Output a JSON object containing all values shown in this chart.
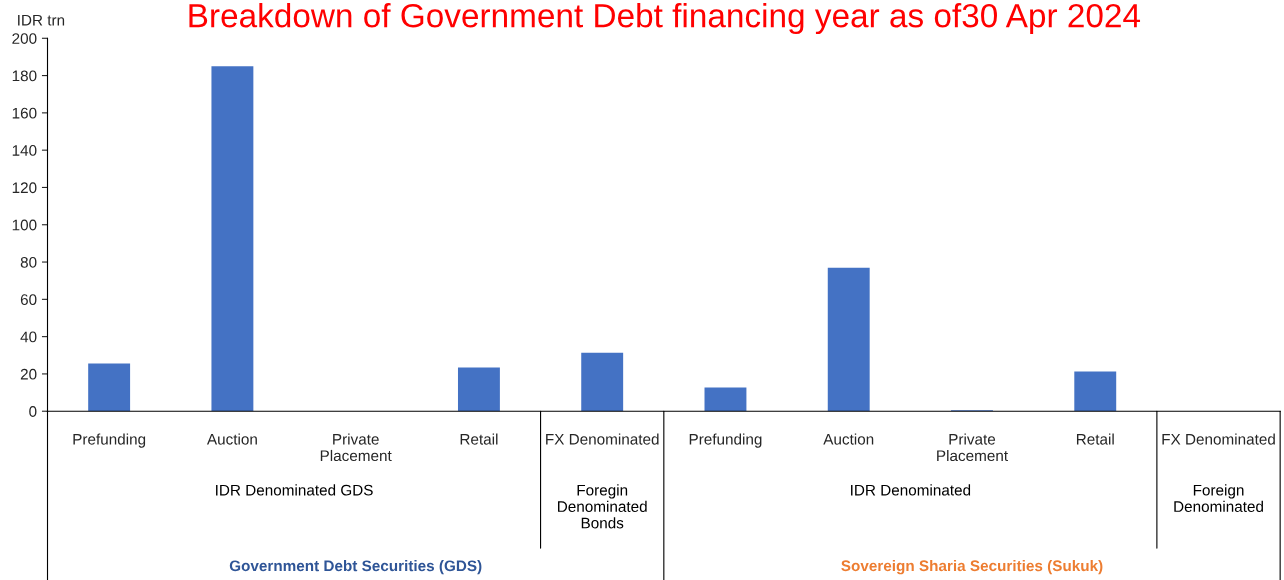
{
  "chart_data": {
    "type": "bar",
    "title": "Breakdown of Government Debt financing year as of30 Apr 2024",
    "ylabel": "IDR trn",
    "categories": [
      "Prefunding",
      "Auction",
      "Private\nPlacement",
      "Retail",
      "FX Denominated",
      "Prefunding",
      "Auction",
      "Private\nPlacement",
      "Retail",
      "FX Denominated"
    ],
    "series": [
      {
        "color": "#4472c4",
        "values": [
          25.6,
          185,
          null,
          23.5,
          31.4,
          12.7,
          76.9,
          0.5,
          21.3,
          null
        ]
      }
    ],
    "ylim": [
      0,
      200
    ],
    "yticks": [
      0,
      20,
      40,
      60,
      80,
      100,
      120,
      140,
      160,
      180,
      200
    ],
    "grid": false,
    "annotations": [
      "IDR Denominated GDS",
      "Foregin\nDenominated\nBonds",
      "IDR Denominated",
      "Foreign\nDenominated",
      "Government Debt Securities (GDS)",
      "Sovereign Sharia Securities (Sukuk)"
    ]
  }
}
